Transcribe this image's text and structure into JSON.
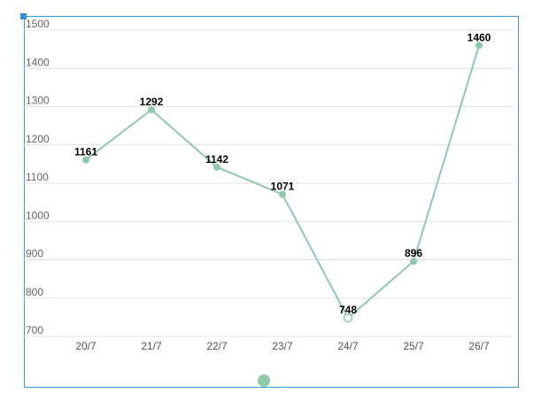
{
  "colors": {
    "series": "#8ecaa8",
    "grid": "#e0e0e0",
    "frame": "#3b9bd0",
    "handle": "#3b8ad9"
  },
  "legend": {
    "marker_shape": "circle"
  },
  "chart_data": {
    "type": "line",
    "categories": [
      "20/7",
      "21/7",
      "22/7",
      "23/7",
      "24/7",
      "25/7",
      "26/7"
    ],
    "series": [
      {
        "values": [
          1161,
          1292,
          1142,
          1071,
          748,
          896,
          1460
        ],
        "hollow_point_index": 4
      }
    ],
    "yticks": [
      700,
      800,
      900,
      1000,
      1100,
      1200,
      1300,
      1400,
      1500
    ],
    "ylim": [
      700,
      1500
    ],
    "grid": true,
    "data_labels": true,
    "legend": "bottom",
    "title": "",
    "xlabel": "",
    "ylabel": ""
  }
}
